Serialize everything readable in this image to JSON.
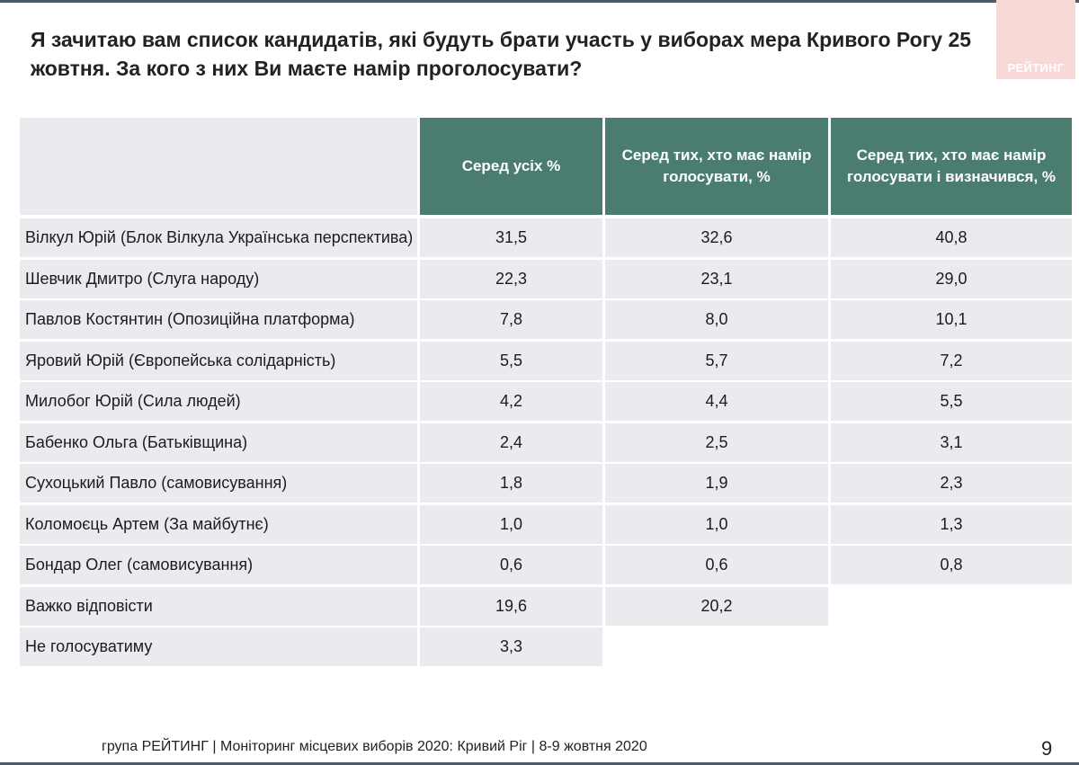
{
  "slide": {
    "title": "Я зачитаю вам список кандидатів, які будуть брати участь у виборах мера Кривого Рогу 25 жовтня. За кого з них Ви маєте намір проголосувати?",
    "logo_text": "РЕЙТИНГ",
    "footer": "група РЕЙТИНГ  | Моніторинг місцевих виборів 2020: Кривий Ріг |  8-9 жовтня 2020",
    "page_number": "9"
  },
  "table": {
    "headers": [
      "Серед усіх %",
      "Серед тих, хто має намір голосувати, %",
      "Серед тих, хто має намір голосувати і визначився, %"
    ],
    "rows": [
      {
        "name": "Вілкул Юрій (Блок Вілкула Українська перспектива)",
        "all": "31,5",
        "intend": "32,6",
        "decided": "40,8"
      },
      {
        "name": "Шевчик Дмитро (Слуга народу)",
        "all": "22,3",
        "intend": "23,1",
        "decided": "29,0"
      },
      {
        "name": "Павлов Костянтин (Опозиційна платформа)",
        "all": "7,8",
        "intend": "8,0",
        "decided": "10,1"
      },
      {
        "name": "Яровий Юрій (Європейська солідарність)",
        "all": "5,5",
        "intend": "5,7",
        "decided": "7,2"
      },
      {
        "name": "Милобог Юрій (Сила людей)",
        "all": "4,2",
        "intend": "4,4",
        "decided": "5,5"
      },
      {
        "name": "Бабенко Ольга (Батьківщина)",
        "all": "2,4",
        "intend": "2,5",
        "decided": "3,1"
      },
      {
        "name": "Сухоцький Павло (самовисування)",
        "all": "1,8",
        "intend": "1,9",
        "decided": "2,3"
      },
      {
        "name": "Коломоєць Артем (За майбутнє)",
        "all": "1,0",
        "intend": "1,0",
        "decided": "1,3"
      },
      {
        "name": "Бондар Олег (самовисування)",
        "all": "0,6",
        "intend": "0,6",
        "decided": "0,8"
      },
      {
        "name": "Важко відповісти",
        "all": "19,6",
        "intend": "20,2",
        "decided": null
      },
      {
        "name": "Не голосуватиму",
        "all": "3,3",
        "intend": null,
        "decided": null
      }
    ]
  },
  "colors": {
    "header_bg": "#4b7c70",
    "cell_bg": "#e9ebee",
    "logo_bg": "#f9d8d8"
  }
}
